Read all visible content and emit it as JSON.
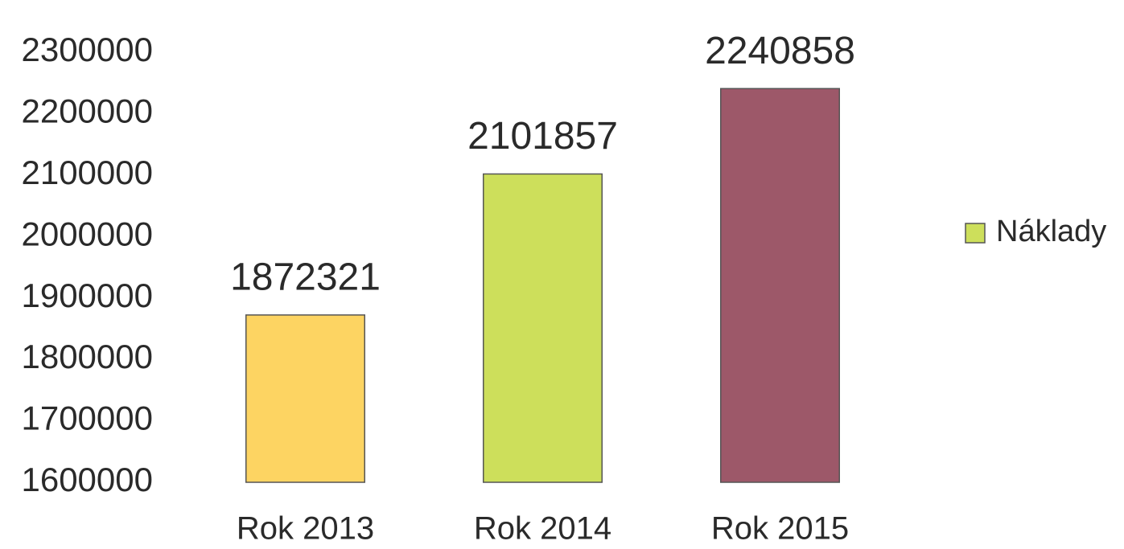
{
  "chart_data": {
    "type": "bar",
    "categories": [
      "Rok 2013",
      "Rok 2014",
      "Rok 2015"
    ],
    "series": [
      {
        "name": "Náklady",
        "color": "#cddf5b",
        "colors": [
          "#fdd462",
          "#cddf5b",
          "#9d5869"
        ],
        "values": [
          1872321,
          2101857,
          2240858
        ]
      }
    ],
    "ylim": [
      1600000,
      2300000
    ],
    "yticks": [
      1600000,
      1700000,
      1800000,
      1900000,
      2000000,
      2100000,
      2200000,
      2300000
    ],
    "grid": false,
    "legend": "right"
  }
}
